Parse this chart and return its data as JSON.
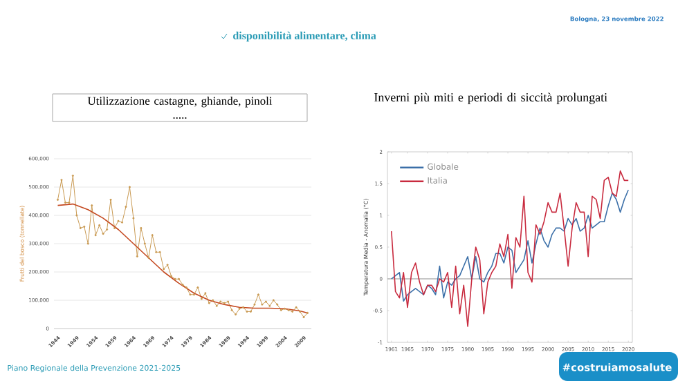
{
  "chart_data": [
    {
      "type": "line",
      "title": "Utilizzazione castagne, ghiande, pinoli",
      "subtitle": ".....",
      "ylabel": "Frutti del bosco (tonnellate)",
      "annotations": [
        "disponibilità alimentare, clima",
        "Bologna, 23 novembre 2022",
        "Piano Regionale della Prevenzione 2021-2025"
      ],
      "xlim": [
        1943,
        2011
      ],
      "ylim": [
        0,
        600000
      ],
      "grid": "y",
      "xticks": [
        1944,
        1949,
        1954,
        1959,
        1964,
        1969,
        1974,
        1979,
        1984,
        1989,
        1994,
        1999,
        2004,
        2009
      ],
      "yticks": [
        0,
        {
          "value": 100000,
          "label": "100,000"
        },
        {
          "value": 200000,
          "label": "200,000"
        },
        {
          "value": 300000,
          "label": "300,000"
        },
        {
          "value": 400000,
          "label": "400,000"
        },
        {
          "value": 500000,
          "label": "500,000"
        },
        {
          "value": 600000,
          "label": "600,000"
        }
      ],
      "series": [
        {
          "color": "#c99a52",
          "marker": "circle",
          "x": [
            1944,
            1945,
            1946,
            1947,
            1948,
            1949,
            1950,
            1951,
            1952,
            1953,
            1954,
            1955,
            1956,
            1957,
            1958,
            1959,
            1960,
            1961,
            1962,
            1963,
            1964,
            1965,
            1966,
            1967,
            1968,
            1969,
            1970,
            1971,
            1972,
            1973,
            1974,
            1975,
            1976,
            1977,
            1978,
            1979,
            1980,
            1981,
            1982,
            1983,
            1984,
            1985,
            1986,
            1987,
            1988,
            1989,
            1990,
            1991,
            1992,
            1993,
            1994,
            1995,
            1996,
            1997,
            1998,
            1999,
            2000,
            2001,
            2002,
            2003,
            2004,
            2005,
            2006,
            2007,
            2008,
            2009,
            2010
          ],
          "values": [
            455000,
            525000,
            445000,
            445000,
            540000,
            400000,
            355000,
            360000,
            300000,
            435000,
            330000,
            365000,
            335000,
            350000,
            455000,
            355000,
            380000,
            375000,
            430000,
            500000,
            390000,
            255000,
            355000,
            300000,
            250000,
            330000,
            270000,
            270000,
            210000,
            225000,
            185000,
            175000,
            175000,
            155000,
            145000,
            120000,
            120000,
            145000,
            105000,
            125000,
            90000,
            100000,
            80000,
            95000,
            90000,
            95000,
            65000,
            50000,
            70000,
            75000,
            60000,
            60000,
            85000,
            120000,
            85000,
            95000,
            80000,
            100000,
            85000,
            65000,
            70000,
            65000,
            60000,
            75000,
            60000,
            40000,
            55000
          ]
        },
        {
          "color": "#c4481f",
          "marker": "none",
          "x": [
            1944,
            1948,
            1952,
            1956,
            1960,
            1964,
            1968,
            1972,
            1976,
            1980,
            1984,
            1988,
            1992,
            1996,
            2000,
            2004,
            2008,
            2010
          ],
          "values": [
            435000,
            440000,
            420000,
            390000,
            350000,
            300000,
            250000,
            200000,
            160000,
            125000,
            100000,
            85000,
            75000,
            72000,
            72000,
            70000,
            62000,
            55000
          ]
        }
      ]
    },
    {
      "type": "line",
      "title": "Inverni più miti e periodi di siccità prolungati",
      "ylabel": "Temperatura Media - Anomalia (°C)",
      "annotations": [
        "#costruiamosalute"
      ],
      "xlim": [
        1960,
        2021
      ],
      "ylim": [
        -1,
        2
      ],
      "legend": "top left",
      "xticks": [
        1961,
        1965,
        1970,
        1975,
        1980,
        1985,
        1990,
        1995,
        2000,
        2005,
        2010,
        2015,
        2020
      ],
      "yticks": [
        -1,
        -0.5,
        0,
        0.5,
        1,
        1.5,
        2
      ],
      "ref_lines": [
        {
          "axis": "y",
          "value": 0,
          "color": "#b4b4b4"
        }
      ],
      "series": [
        {
          "name": "Globale",
          "color": "#3b6fa8",
          "x": [
            1961,
            1962,
            1963,
            1964,
            1965,
            1966,
            1967,
            1968,
            1969,
            1970,
            1971,
            1972,
            1973,
            1974,
            1975,
            1976,
            1977,
            1978,
            1979,
            1980,
            1981,
            1982,
            1983,
            1984,
            1985,
            1986,
            1987,
            1988,
            1989,
            1990,
            1991,
            1992,
            1993,
            1994,
            1995,
            1996,
            1997,
            1998,
            1999,
            2000,
            2001,
            2002,
            2003,
            2004,
            2005,
            2006,
            2007,
            2008,
            2009,
            2010,
            2011,
            2012,
            2013,
            2014,
            2015,
            2016,
            2017,
            2018,
            2019,
            2020
          ],
          "values": [
            0.0,
            0.05,
            0.1,
            -0.35,
            -0.25,
            -0.2,
            -0.15,
            -0.2,
            -0.25,
            -0.1,
            -0.15,
            -0.25,
            0.2,
            -0.3,
            -0.05,
            -0.1,
            0.0,
            0.05,
            0.2,
            0.35,
            0.0,
            0.35,
            0.0,
            -0.05,
            0.1,
            0.2,
            0.4,
            0.4,
            0.25,
            0.5,
            0.45,
            0.1,
            0.2,
            0.3,
            0.6,
            0.25,
            0.55,
            0.8,
            0.6,
            0.5,
            0.7,
            0.8,
            0.8,
            0.75,
            0.95,
            0.85,
            0.95,
            0.75,
            0.8,
            1.0,
            0.8,
            0.85,
            0.9,
            0.9,
            1.15,
            1.35,
            1.25,
            1.05,
            1.25,
            1.4
          ]
        },
        {
          "name": "Italia",
          "color": "#c82a3e",
          "x": [
            1961,
            1962,
            1963,
            1964,
            1965,
            1966,
            1967,
            1968,
            1969,
            1970,
            1971,
            1972,
            1973,
            1974,
            1975,
            1976,
            1977,
            1978,
            1979,
            1980,
            1981,
            1982,
            1983,
            1984,
            1985,
            1986,
            1987,
            1988,
            1989,
            1990,
            1991,
            1992,
            1993,
            1994,
            1995,
            1996,
            1997,
            1998,
            1999,
            2000,
            2001,
            2002,
            2003,
            2004,
            2005,
            2006,
            2007,
            2008,
            2009,
            2010,
            2011,
            2012,
            2013,
            2014,
            2015,
            2016,
            2017,
            2018,
            2019,
            2020
          ],
          "values": [
            0.75,
            -0.2,
            -0.3,
            0.1,
            -0.45,
            0.1,
            0.25,
            -0.05,
            -0.25,
            -0.1,
            -0.1,
            -0.2,
            0.0,
            -0.05,
            0.1,
            -0.45,
            0.2,
            -0.55,
            -0.1,
            -0.75,
            0.0,
            0.5,
            0.3,
            -0.55,
            -0.05,
            0.1,
            0.2,
            0.55,
            0.35,
            0.7,
            -0.15,
            0.65,
            0.5,
            1.3,
            0.1,
            -0.05,
            0.85,
            0.7,
            0.9,
            1.2,
            1.05,
            1.05,
            1.35,
            0.8,
            0.2,
            0.8,
            1.2,
            1.05,
            1.05,
            0.35,
            1.3,
            1.25,
            0.95,
            1.55,
            1.6,
            1.35,
            1.3,
            1.7,
            1.55,
            1.55
          ]
        }
      ]
    }
  ]
}
